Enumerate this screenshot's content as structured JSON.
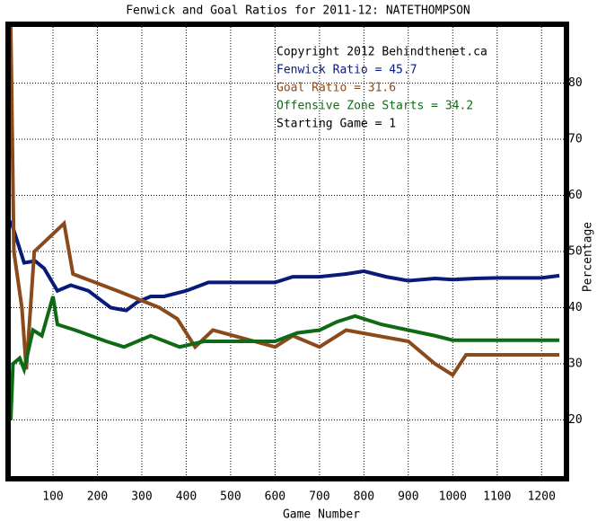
{
  "chart_data": {
    "type": "line",
    "title": "Fenwick and Goal Ratios for 2011-12: NATETHOMPSON",
    "x_label": "Game Number",
    "y_label": "Percentage",
    "annotations": [
      {
        "text": "Copyright 2012 Behindthenet.ca",
        "color": "#000000"
      },
      {
        "text": "Starting Game = 1",
        "color": "#000000"
      }
    ],
    "series": [
      {
        "name": "Fenwick Ratio = 45.7",
        "color": "#0a1a7a",
        "x": [
          5,
          15,
          35,
          60,
          80,
          110,
          140,
          180,
          230,
          265,
          290,
          320,
          350,
          400,
          450,
          500,
          550,
          600,
          640,
          700,
          760,
          800,
          850,
          900,
          960,
          1000,
          1050,
          1100,
          1150,
          1200,
          1240
        ],
        "values": [
          55.5,
          53,
          48,
          48.3,
          47,
          43,
          44,
          43,
          40,
          39.5,
          41,
          42,
          42,
          43,
          44.5,
          44.5,
          44.5,
          44.5,
          45.5,
          45.5,
          46,
          46.5,
          45.5,
          44.8,
          45.2,
          45,
          45.2,
          45.3,
          45.3,
          45.3,
          45.7
        ]
      },
      {
        "name": "Goal Ratio = 31.6",
        "color": "#8b4a1c",
        "x": [
          5,
          12,
          30,
          40,
          58,
          125,
          145,
          245,
          340,
          380,
          420,
          460,
          600,
          640,
          700,
          760,
          900,
          960,
          1000,
          1030,
          1240
        ],
        "values": [
          90,
          50,
          40,
          29,
          50,
          55,
          46,
          43,
          40,
          38,
          33,
          36,
          33,
          35,
          33,
          36,
          34,
          30,
          28,
          31.6,
          31.6
        ]
      },
      {
        "name": "Offensive Zone Starts = 34.2",
        "color": "#0e6a14",
        "x": [
          5,
          10,
          25,
          35,
          55,
          75,
          100,
          110,
          150,
          220,
          260,
          320,
          385,
          440,
          600,
          650,
          700,
          740,
          780,
          840,
          900,
          960,
          1000,
          1240
        ],
        "values": [
          20,
          30,
          31,
          29,
          36,
          35,
          42,
          37,
          36,
          34,
          33,
          35,
          33,
          34,
          34,
          35.5,
          36,
          37.5,
          38.5,
          37,
          36,
          35,
          34.2,
          34.2
        ]
      }
    ],
    "xlim": [
      5,
      1250
    ],
    "ylim": [
      10,
      90
    ],
    "xticks": [
      100,
      200,
      300,
      400,
      500,
      600,
      700,
      800,
      900,
      1000,
      1100,
      1200
    ],
    "yticks": [
      20,
      30,
      40,
      50,
      60,
      70,
      80
    ],
    "grid": true
  }
}
